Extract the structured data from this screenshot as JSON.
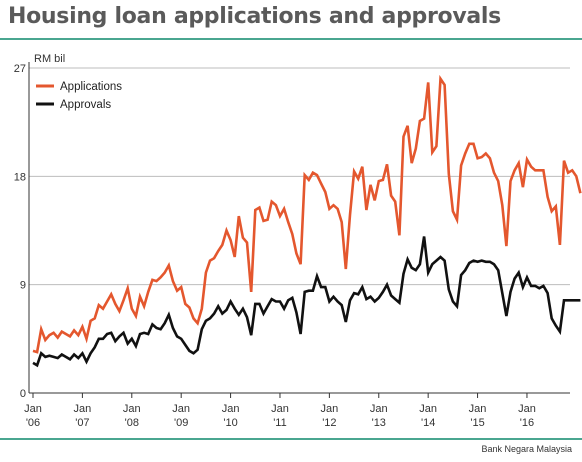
{
  "title": "Housing loan applications and approvals",
  "source": "Bank Negara Malaysia",
  "colors": {
    "applications": "#e4572e",
    "approvals": "#111111",
    "rule": "#4aa690",
    "grid": "#bdbdbd"
  },
  "chart_data": {
    "type": "line",
    "unit_label": "RM bil",
    "ylim": [
      0,
      27
    ],
    "yticks": [
      "0",
      "9",
      "18",
      "27"
    ],
    "ytick_values": [
      0,
      9,
      18,
      27
    ],
    "xlim": [
      2006.0,
      2016.75
    ],
    "xticks": [
      {
        "t": 2006.0,
        "line1": "Jan",
        "line2": "'06"
      },
      {
        "t": 2007.0,
        "line1": "Jan",
        "line2": "'07"
      },
      {
        "t": 2008.0,
        "line1": "Jan",
        "line2": "'08"
      },
      {
        "t": 2009.0,
        "line1": "Jan",
        "line2": "'09"
      },
      {
        "t": 2010.0,
        "line1": "Jan",
        "line2": "'10"
      },
      {
        "t": 2011.0,
        "line1": "Jan",
        "line2": "'11"
      },
      {
        "t": 2012.0,
        "line1": "Jan",
        "line2": "'12"
      },
      {
        "t": 2013.0,
        "line1": "Jan",
        "line2": "'13"
      },
      {
        "t": 2014.0,
        "line1": "Jan",
        "line2": "'14"
      },
      {
        "t": 2015.0,
        "line1": "Jan",
        "line2": "'15"
      },
      {
        "t": 2016.0,
        "line1": "Jan",
        "line2": "'16"
      }
    ],
    "legend_position": "top-left",
    "grid": true,
    "series": [
      {
        "name": "Applications",
        "color": "#e4572e",
        "points": [
          [
            2006.0,
            3.5
          ],
          [
            2006.083,
            3.4
          ],
          [
            2006.167,
            5.3
          ],
          [
            2006.25,
            4.4
          ],
          [
            2006.333,
            4.8
          ],
          [
            2006.417,
            5.0
          ],
          [
            2006.5,
            4.6
          ],
          [
            2006.583,
            5.1
          ],
          [
            2006.667,
            4.9
          ],
          [
            2006.75,
            4.7
          ],
          [
            2006.833,
            5.2
          ],
          [
            2006.917,
            4.8
          ],
          [
            2007.0,
            5.5
          ],
          [
            2007.083,
            4.5
          ],
          [
            2007.167,
            6.0
          ],
          [
            2007.25,
            6.2
          ],
          [
            2007.333,
            7.3
          ],
          [
            2007.417,
            7.0
          ],
          [
            2007.5,
            7.6
          ],
          [
            2007.583,
            8.2
          ],
          [
            2007.667,
            7.4
          ],
          [
            2007.75,
            6.8
          ],
          [
            2007.833,
            7.7
          ],
          [
            2007.917,
            8.7
          ],
          [
            2008.0,
            7.0
          ],
          [
            2008.083,
            6.4
          ],
          [
            2008.167,
            8.0
          ],
          [
            2008.25,
            7.2
          ],
          [
            2008.333,
            8.4
          ],
          [
            2008.417,
            9.4
          ],
          [
            2008.5,
            9.3
          ],
          [
            2008.583,
            9.6
          ],
          [
            2008.667,
            10.0
          ],
          [
            2008.75,
            10.6
          ],
          [
            2008.833,
            9.3
          ],
          [
            2008.917,
            8.5
          ],
          [
            2009.0,
            8.8
          ],
          [
            2009.083,
            7.4
          ],
          [
            2009.167,
            7.1
          ],
          [
            2009.25,
            6.2
          ],
          [
            2009.333,
            5.8
          ],
          [
            2009.417,
            7.0
          ],
          [
            2009.5,
            10.0
          ],
          [
            2009.583,
            11.0
          ],
          [
            2009.667,
            11.2
          ],
          [
            2009.75,
            11.8
          ],
          [
            2009.833,
            12.3
          ],
          [
            2009.917,
            13.5
          ],
          [
            2010.0,
            12.7
          ],
          [
            2010.083,
            11.3
          ],
          [
            2010.167,
            14.7
          ],
          [
            2010.25,
            12.9
          ],
          [
            2010.333,
            12.5
          ],
          [
            2010.417,
            8.4
          ],
          [
            2010.5,
            15.2
          ],
          [
            2010.583,
            15.4
          ],
          [
            2010.667,
            14.3
          ],
          [
            2010.75,
            14.4
          ],
          [
            2010.833,
            15.9
          ],
          [
            2010.917,
            15.6
          ],
          [
            2011.0,
            14.7
          ],
          [
            2011.083,
            15.3
          ],
          [
            2011.167,
            14.2
          ],
          [
            2011.25,
            13.2
          ],
          [
            2011.333,
            11.6
          ],
          [
            2011.417,
            10.7
          ],
          [
            2011.5,
            18.1
          ],
          [
            2011.583,
            17.7
          ],
          [
            2011.667,
            18.3
          ],
          [
            2011.75,
            18.1
          ],
          [
            2011.833,
            17.4
          ],
          [
            2011.917,
            16.7
          ],
          [
            2012.0,
            15.3
          ],
          [
            2012.083,
            15.6
          ],
          [
            2012.167,
            15.3
          ],
          [
            2012.25,
            14.2
          ],
          [
            2012.333,
            10.3
          ],
          [
            2012.417,
            14.8
          ],
          [
            2012.5,
            18.4
          ],
          [
            2012.583,
            17.8
          ],
          [
            2012.667,
            18.8
          ],
          [
            2012.75,
            15.2
          ],
          [
            2012.833,
            17.3
          ],
          [
            2012.917,
            16.0
          ],
          [
            2013.0,
            17.6
          ],
          [
            2013.083,
            17.7
          ],
          [
            2013.167,
            19.0
          ],
          [
            2013.25,
            16.4
          ],
          [
            2013.333,
            15.9
          ],
          [
            2013.417,
            13.1
          ],
          [
            2013.5,
            21.3
          ],
          [
            2013.583,
            22.2
          ],
          [
            2013.667,
            19.1
          ],
          [
            2013.75,
            20.3
          ],
          [
            2013.833,
            22.6
          ],
          [
            2013.917,
            22.8
          ],
          [
            2014.0,
            25.8
          ],
          [
            2014.083,
            20.0
          ],
          [
            2014.167,
            20.5
          ],
          [
            2014.25,
            26.1
          ],
          [
            2014.333,
            25.6
          ],
          [
            2014.417,
            18.2
          ],
          [
            2014.5,
            15.1
          ],
          [
            2014.583,
            14.4
          ],
          [
            2014.667,
            18.9
          ],
          [
            2014.75,
            19.9
          ],
          [
            2014.833,
            20.7
          ],
          [
            2014.917,
            20.7
          ],
          [
            2015.0,
            19.5
          ],
          [
            2015.083,
            19.6
          ],
          [
            2015.167,
            19.9
          ],
          [
            2015.25,
            19.5
          ],
          [
            2015.333,
            18.3
          ],
          [
            2015.417,
            17.6
          ],
          [
            2015.5,
            15.6
          ],
          [
            2015.583,
            12.2
          ],
          [
            2015.667,
            17.6
          ],
          [
            2015.75,
            18.5
          ],
          [
            2015.833,
            19.1
          ],
          [
            2015.917,
            17.1
          ],
          [
            2016.0,
            19.4
          ],
          [
            2016.083,
            18.8
          ],
          [
            2016.167,
            18.5
          ],
          [
            2016.25,
            18.5
          ],
          [
            2016.333,
            18.5
          ],
          [
            2016.417,
            16.3
          ],
          [
            2016.5,
            15.1
          ],
          [
            2016.583,
            15.5
          ],
          [
            2016.667,
            12.3
          ],
          [
            2016.75,
            19.3
          ],
          [
            2016.833,
            18.3
          ],
          [
            2016.917,
            18.5
          ],
          [
            2017.0,
            18.0
          ],
          [
            2017.083,
            16.6
          ]
        ]
      },
      {
        "name": "Approvals",
        "color": "#111111",
        "points": [
          [
            2006.0,
            2.5
          ],
          [
            2006.083,
            2.3
          ],
          [
            2006.167,
            3.3
          ],
          [
            2006.25,
            3.0
          ],
          [
            2006.333,
            3.1
          ],
          [
            2006.417,
            3.0
          ],
          [
            2006.5,
            2.9
          ],
          [
            2006.583,
            3.2
          ],
          [
            2006.667,
            3.0
          ],
          [
            2006.75,
            2.8
          ],
          [
            2006.833,
            3.2
          ],
          [
            2006.917,
            2.9
          ],
          [
            2007.0,
            3.3
          ],
          [
            2007.083,
            2.6
          ],
          [
            2007.167,
            3.3
          ],
          [
            2007.25,
            3.8
          ],
          [
            2007.333,
            4.5
          ],
          [
            2007.417,
            4.5
          ],
          [
            2007.5,
            4.9
          ],
          [
            2007.583,
            5.0
          ],
          [
            2007.667,
            4.3
          ],
          [
            2007.75,
            4.7
          ],
          [
            2007.833,
            5.0
          ],
          [
            2007.917,
            4.1
          ],
          [
            2008.0,
            4.5
          ],
          [
            2008.083,
            3.9
          ],
          [
            2008.167,
            4.9
          ],
          [
            2008.25,
            5.0
          ],
          [
            2008.333,
            4.9
          ],
          [
            2008.417,
            5.7
          ],
          [
            2008.5,
            5.4
          ],
          [
            2008.583,
            5.3
          ],
          [
            2008.667,
            5.8
          ],
          [
            2008.75,
            6.5
          ],
          [
            2008.833,
            5.4
          ],
          [
            2008.917,
            4.7
          ],
          [
            2009.0,
            4.5
          ],
          [
            2009.083,
            4.0
          ],
          [
            2009.167,
            3.5
          ],
          [
            2009.25,
            3.3
          ],
          [
            2009.333,
            3.6
          ],
          [
            2009.417,
            5.3
          ],
          [
            2009.5,
            6.0
          ],
          [
            2009.583,
            6.2
          ],
          [
            2009.667,
            6.6
          ],
          [
            2009.75,
            7.2
          ],
          [
            2009.833,
            6.6
          ],
          [
            2009.917,
            6.9
          ],
          [
            2010.0,
            7.6
          ],
          [
            2010.083,
            7.0
          ],
          [
            2010.167,
            6.5
          ],
          [
            2010.25,
            7.0
          ],
          [
            2010.333,
            6.3
          ],
          [
            2010.417,
            4.8
          ],
          [
            2010.5,
            7.4
          ],
          [
            2010.583,
            7.4
          ],
          [
            2010.667,
            6.6
          ],
          [
            2010.75,
            7.2
          ],
          [
            2010.833,
            7.8
          ],
          [
            2010.917,
            7.6
          ],
          [
            2011.0,
            7.6
          ],
          [
            2011.083,
            7.0
          ],
          [
            2011.167,
            7.7
          ],
          [
            2011.25,
            7.9
          ],
          [
            2011.333,
            6.7
          ],
          [
            2011.417,
            4.9
          ],
          [
            2011.5,
            8.4
          ],
          [
            2011.583,
            8.5
          ],
          [
            2011.667,
            8.5
          ],
          [
            2011.75,
            9.7
          ],
          [
            2011.833,
            8.8
          ],
          [
            2011.917,
            8.8
          ],
          [
            2012.0,
            7.6
          ],
          [
            2012.083,
            8.0
          ],
          [
            2012.167,
            7.6
          ],
          [
            2012.25,
            7.3
          ],
          [
            2012.333,
            5.9
          ],
          [
            2012.417,
            7.7
          ],
          [
            2012.5,
            8.3
          ],
          [
            2012.583,
            8.2
          ],
          [
            2012.667,
            8.8
          ],
          [
            2012.75,
            7.8
          ],
          [
            2012.833,
            8.0
          ],
          [
            2012.917,
            7.6
          ],
          [
            2013.0,
            7.9
          ],
          [
            2013.083,
            8.4
          ],
          [
            2013.167,
            9.0
          ],
          [
            2013.25,
            8.1
          ],
          [
            2013.333,
            7.8
          ],
          [
            2013.417,
            7.5
          ],
          [
            2013.5,
            9.9
          ],
          [
            2013.583,
            11.1
          ],
          [
            2013.667,
            10.4
          ],
          [
            2013.75,
            10.2
          ],
          [
            2013.833,
            10.7
          ],
          [
            2013.917,
            13.0
          ],
          [
            2014.0,
            10.0
          ],
          [
            2014.083,
            10.7
          ],
          [
            2014.167,
            11.0
          ],
          [
            2014.25,
            11.3
          ],
          [
            2014.333,
            11.0
          ],
          [
            2014.417,
            8.6
          ],
          [
            2014.5,
            7.6
          ],
          [
            2014.583,
            7.2
          ],
          [
            2014.667,
            9.8
          ],
          [
            2014.75,
            10.2
          ],
          [
            2014.833,
            10.8
          ],
          [
            2014.917,
            11.0
          ],
          [
            2015.0,
            10.9
          ],
          [
            2015.083,
            11.0
          ],
          [
            2015.167,
            10.9
          ],
          [
            2015.25,
            10.9
          ],
          [
            2015.333,
            10.7
          ],
          [
            2015.417,
            10.2
          ],
          [
            2015.5,
            8.3
          ],
          [
            2015.583,
            6.4
          ],
          [
            2015.667,
            8.4
          ],
          [
            2015.75,
            9.5
          ],
          [
            2015.833,
            10.0
          ],
          [
            2015.917,
            8.8
          ],
          [
            2016.0,
            9.6
          ],
          [
            2016.083,
            8.9
          ],
          [
            2016.167,
            8.9
          ],
          [
            2016.25,
            8.7
          ],
          [
            2016.333,
            8.9
          ],
          [
            2016.417,
            8.3
          ],
          [
            2016.5,
            6.2
          ],
          [
            2016.583,
            5.6
          ],
          [
            2016.667,
            5.1
          ],
          [
            2016.75,
            7.7
          ],
          [
            2016.833,
            7.7
          ],
          [
            2016.917,
            7.7
          ],
          [
            2017.0,
            7.7
          ],
          [
            2017.083,
            7.7
          ]
        ]
      }
    ]
  }
}
